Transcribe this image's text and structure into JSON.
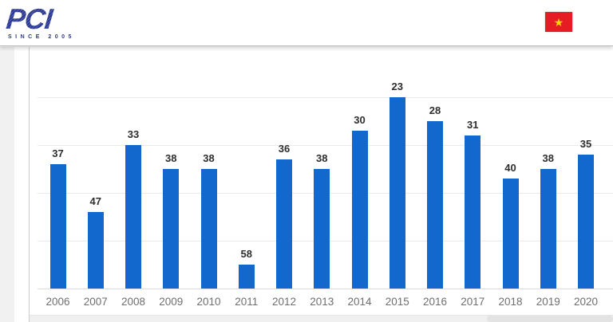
{
  "header": {
    "logo": {
      "text": "PCI",
      "subtext": "SINCE 2005",
      "color": "#2b3990"
    },
    "flag": {
      "name": "vietnam-flag",
      "background": "#e51c23",
      "star_color": "#ffd400",
      "star_glyph": "★"
    }
  },
  "chart_data": {
    "type": "bar",
    "categories": [
      "2006",
      "2007",
      "2008",
      "2009",
      "2010",
      "2011",
      "2012",
      "2013",
      "2014",
      "2015",
      "2016",
      "2017",
      "2018",
      "2019",
      "2020"
    ],
    "values": [
      37,
      47,
      33,
      38,
      38,
      58,
      36,
      38,
      30,
      23,
      28,
      31,
      40,
      38,
      35
    ],
    "title": "",
    "xlabel": "",
    "ylabel": "",
    "bar_color": "#1268cd",
    "value_label_color": "#2e2e2e",
    "category_label_color": "#6f6f6f",
    "grid_on": true,
    "value_axis": {
      "inverted": true,
      "baseline_value": 63,
      "gridline_values": [
        23,
        33,
        43,
        53
      ],
      "note_values_are_ranks_lower_is_taller": true
    },
    "legend_position": "none"
  }
}
